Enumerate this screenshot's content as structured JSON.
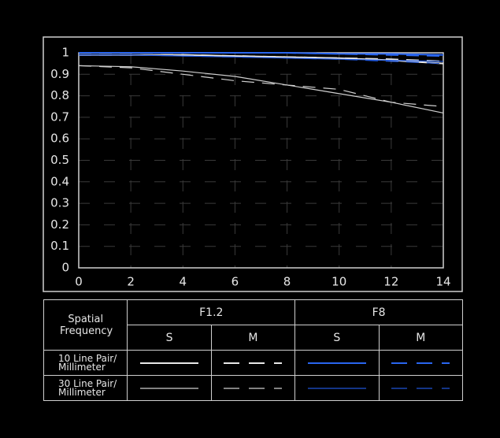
{
  "chart_data": {
    "type": "line",
    "x": [
      0,
      2,
      4,
      6,
      8,
      10,
      12,
      14
    ],
    "xlim": [
      0,
      14
    ],
    "xticks": [
      0,
      2,
      4,
      6,
      8,
      10,
      12,
      14
    ],
    "ylim": [
      0,
      1
    ],
    "yticks": [
      0,
      0.1,
      0.2,
      0.3,
      0.4,
      0.5,
      0.6,
      0.7,
      0.8,
      0.9,
      1
    ],
    "grid": true,
    "series": [
      {
        "color": "#e8e8e8",
        "dashed": false,
        "width": 2,
        "values": [
          0.99,
          0.99,
          0.99,
          0.985,
          0.98,
          0.975,
          0.965,
          0.95
        ]
      },
      {
        "color": "#e8e8e8",
        "dashed": true,
        "width": 2,
        "values": [
          0.99,
          0.99,
          0.99,
          0.985,
          0.98,
          0.975,
          0.97,
          0.96
        ]
      },
      {
        "color": "#2a66f0",
        "dashed": false,
        "width": 2,
        "values": [
          1,
          1,
          1,
          1,
          1,
          0.995,
          0.995,
          0.99
        ]
      },
      {
        "color": "#2a66f0",
        "dashed": true,
        "width": 2,
        "values": [
          1,
          1,
          1,
          1,
          1,
          0.995,
          0.99,
          0.985
        ]
      },
      {
        "color": "#d0d0d0",
        "dashed": false,
        "width": 1.2,
        "values": [
          0.94,
          0.935,
          0.915,
          0.89,
          0.85,
          0.81,
          0.77,
          0.72
        ]
      },
      {
        "color": "#d0d0d0",
        "dashed": true,
        "width": 1.2,
        "values": [
          0.94,
          0.93,
          0.9,
          0.87,
          0.85,
          0.83,
          0.77,
          0.75
        ]
      },
      {
        "color": "#1f55d8",
        "dashed": false,
        "width": 1.2,
        "values": [
          0.99,
          0.99,
          0.985,
          0.98,
          0.975,
          0.97,
          0.965,
          0.96
        ]
      },
      {
        "color": "#1f55d8",
        "dashed": true,
        "width": 1.2,
        "values": [
          0.99,
          0.99,
          0.985,
          0.98,
          0.975,
          0.97,
          0.96,
          0.95
        ]
      }
    ],
    "legend": {
      "header": "Spatial Frequency",
      "groups": [
        "F1.2",
        "F8"
      ],
      "subgroups": [
        "S",
        "M"
      ],
      "rows": [
        "10 Line Pair/ Millimeter",
        "30 Line Pair/ Millimeter"
      ]
    }
  }
}
